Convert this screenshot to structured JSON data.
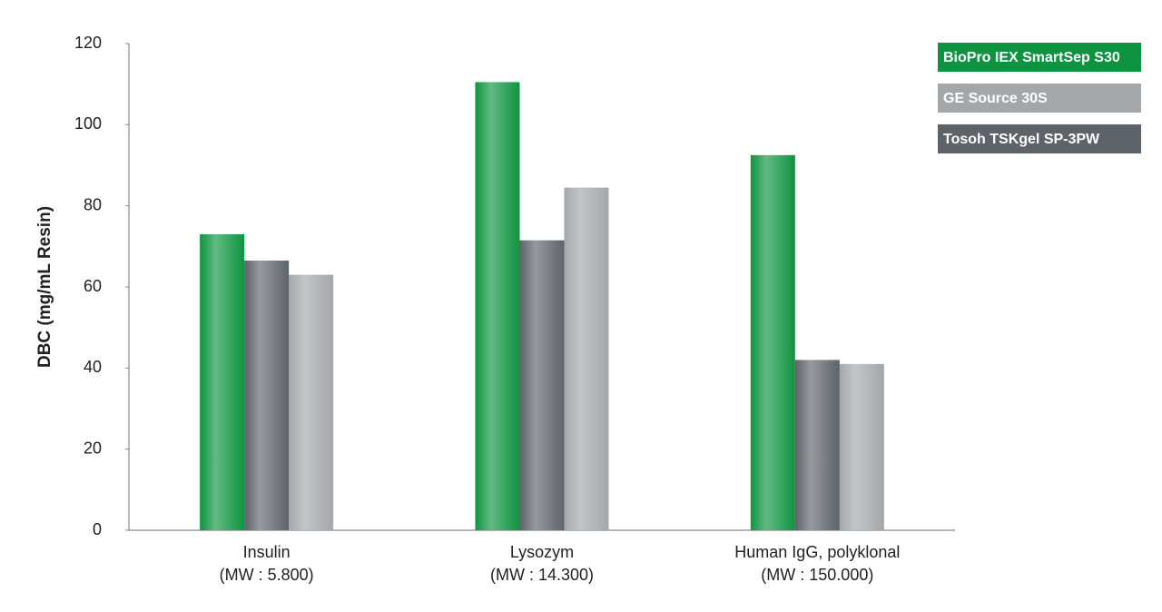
{
  "chart_data": {
    "type": "bar",
    "y_label": "DBC (mg/mL Resin)",
    "categories": [
      "Insulin",
      "Lysozym",
      "Human IgG, polyklonal"
    ],
    "category_notes": [
      "(MW : 5.800)",
      "(MW : 14.300)",
      "(MW : 150.000)"
    ],
    "series": [
      {
        "name": "BioPro IEX SmartSep S30",
        "color": "#0e9440",
        "values": [
          73,
          110.5,
          92.5
        ]
      },
      {
        "name": "GE Source 30S",
        "color": "#a3a7aa",
        "values": [
          63,
          84.5,
          41
        ]
      },
      {
        "name": "Tosoh TSKgel SP-3PW",
        "color": "#5d6368",
        "values": [
          66.5,
          71.5,
          42
        ]
      }
    ],
    "ylim": [
      0,
      120
    ],
    "yticks": [
      0,
      20,
      40,
      60,
      80,
      100,
      120
    ],
    "legend": "top-right"
  }
}
